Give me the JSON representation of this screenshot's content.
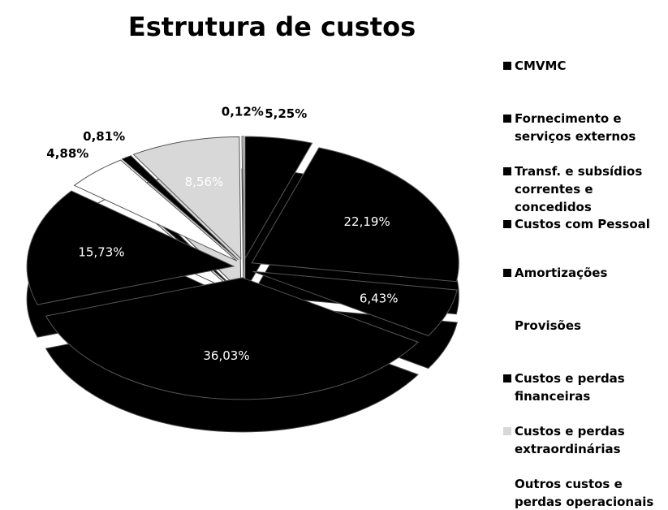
{
  "chart_data": {
    "type": "pie",
    "title": "Estrutura de custos",
    "categories": [
      "CMVMC",
      "Fornecimento e serviços externos",
      "Transf. e subsídios correntes e concedidos",
      "Custos com Pessoal",
      "Amortizações",
      "Provisões",
      "Custos e perdas financeiras",
      "Custos e perdas extraordinárias",
      "Outros custos e perdas operacionais"
    ],
    "values": [
      5.25,
      22.19,
      6.43,
      36.03,
      15.73,
      4.88,
      0.81,
      8.56,
      0.12
    ],
    "value_labels": [
      "5,25%",
      "22,19%",
      "6,43%",
      "36,03%",
      "15,73%",
      "4,88%",
      "0,81%",
      "8,56%",
      "0,12%"
    ],
    "colors": [
      "#000000",
      "#000000",
      "#000000",
      "#000000",
      "#000000",
      "#ffffff",
      "#000000",
      "#d8d8d8",
      "#ffffff"
    ],
    "legend": "right"
  }
}
